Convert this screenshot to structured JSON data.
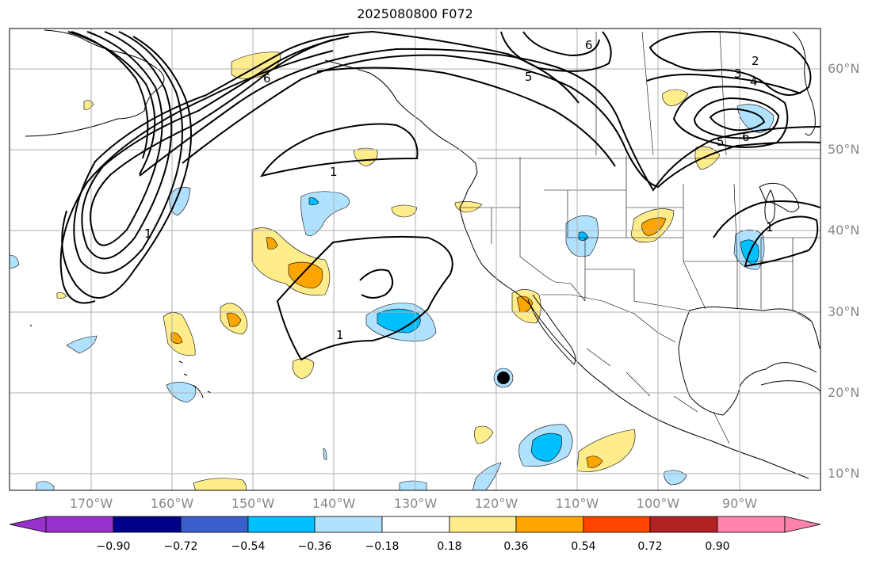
{
  "title": "2025080800 F072",
  "lat_ticks": [
    "60°N",
    "50°N",
    "40°N",
    "30°N",
    "20°N",
    "10°N"
  ],
  "lon_ticks": [
    "170°W",
    "160°W",
    "150°W",
    "140°W",
    "130°W",
    "120°W",
    "110°W",
    "100°W",
    "90°W"
  ],
  "colorbar": {
    "tick_labels": [
      "−0.90",
      "−0.72",
      "−0.54",
      "−0.36",
      "−0.18",
      "0.18",
      "0.36",
      "0.54",
      "0.72",
      "0.90"
    ],
    "colors": [
      "#9932cc",
      "#00008b",
      "#3a5fcd",
      "#00bfff",
      "#b0e2ff",
      "#ffffff",
      "#ffec8b",
      "#ffa500",
      "#ff4500",
      "#b22222",
      "#ff82ab"
    ]
  },
  "contour_labels": [
    "1",
    "1",
    "1",
    "1",
    "2",
    "3",
    "4",
    "5",
    "5",
    "6",
    "6",
    "6"
  ]
}
